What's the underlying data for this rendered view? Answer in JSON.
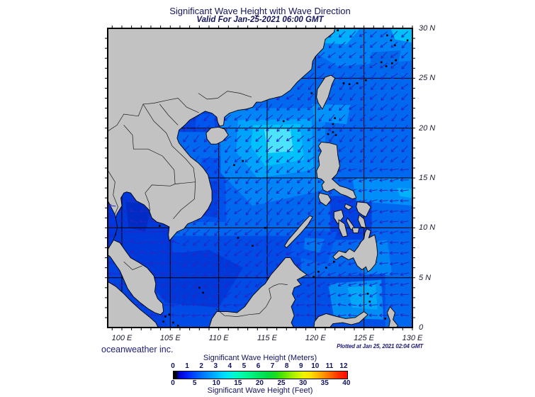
{
  "title": "Significant Wave Height with Wave Direction",
  "subtitle": "Valid For Jan-25-2021 06:00 GMT",
  "credit": "oceanweather inc.",
  "plotted": "Plotted at Jan 25, 2021 02:04 GMT",
  "axes": {
    "lon_labels": [
      "100 E",
      "105 E",
      "110 E",
      "115 E",
      "120 E",
      "125 E",
      "130 E"
    ],
    "lon_values": [
      100,
      105,
      110,
      115,
      120,
      125,
      130
    ],
    "lat_labels": [
      "30 N",
      "25 N",
      "20 N",
      "15 N",
      "10 N",
      "5 N",
      "0"
    ],
    "lat_values": [
      30,
      25,
      20,
      15,
      10,
      5,
      0
    ]
  },
  "legend": {
    "meters_title": "Significant Wave Height (Meters)",
    "feet_title": "Significant Wave Height (Feet)",
    "meters_ticks": [
      "0",
      "1",
      "2",
      "3",
      "4",
      "5",
      "6",
      "7",
      "8",
      "9",
      "10",
      "11",
      "12"
    ],
    "meters_values": [
      0,
      1,
      2,
      3,
      4,
      5,
      6,
      7,
      8,
      9,
      10,
      11,
      12
    ],
    "feet_ticks": [
      "0",
      "5",
      "10",
      "15",
      "20",
      "25",
      "30",
      "35",
      "40"
    ],
    "feet_values": [
      0,
      5,
      10,
      15,
      20,
      25,
      30,
      35,
      40
    ]
  },
  "colors": {
    "land": "#c2c2c2",
    "coast": "#000000",
    "ocean_base": "#0067ef",
    "arrow": "#2626c4",
    "grid": "#000000",
    "text": "#14145e",
    "colorbar_gradient": [
      [
        "0%",
        "#000000"
      ],
      [
        "1.5%",
        "#000000"
      ],
      [
        "3%",
        "#0000c8"
      ],
      [
        "8%",
        "#0022ff"
      ],
      [
        "13%",
        "#0055ff"
      ],
      [
        "18%",
        "#0080ff"
      ],
      [
        "23%",
        "#00a8ff"
      ],
      [
        "27%",
        "#00ccff"
      ],
      [
        "31%",
        "#00e6f2"
      ],
      [
        "35%",
        "#00f6d0"
      ],
      [
        "39%",
        "#00fcaa"
      ],
      [
        "44%",
        "#00f288"
      ],
      [
        "49%",
        "#00e562"
      ],
      [
        "54%",
        "#00dc46"
      ],
      [
        "59%",
        "#1edc1e"
      ],
      [
        "63%",
        "#55e400"
      ],
      [
        "67%",
        "#8eec00"
      ],
      [
        "71%",
        "#c2f300"
      ],
      [
        "75%",
        "#eef400"
      ],
      [
        "79%",
        "#ffdf00"
      ],
      [
        "83%",
        "#ffb600"
      ],
      [
        "87%",
        "#ff8e00"
      ],
      [
        "91%",
        "#ff5f00"
      ],
      [
        "95%",
        "#ff3000"
      ],
      [
        "100%",
        "#ff0a00"
      ]
    ]
  },
  "chart_data": {
    "type": "heatmap",
    "title": "Significant Wave Height with Wave Direction",
    "valid_time": "Jan-25-2021 06:00 GMT",
    "region": {
      "lon_range_deg_e": [
        100,
        130
      ],
      "lat_range_deg_n": [
        0,
        30
      ]
    },
    "x_ticks_deg_e": [
      100,
      105,
      110,
      115,
      120,
      125,
      130
    ],
    "y_ticks_deg_n": [
      0,
      5,
      10,
      15,
      20,
      25,
      30
    ],
    "colorbar_meters": [
      0,
      1,
      2,
      3,
      4,
      5,
      6,
      7,
      8,
      9,
      10,
      11,
      12
    ],
    "colorbar_feet": [
      0,
      5,
      10,
      15,
      20,
      25,
      30,
      35,
      40
    ],
    "field_summary": [
      {
        "area": "central South China Sea (114-118E, 17-20N)",
        "sig_wave_height_m": "2.5-3.5 (maximum, bright cyan)"
      },
      {
        "area": "most of open South China Sea and East China Sea",
        "sig_wave_height_m": "1.5-2.5"
      },
      {
        "area": "Gulf of Thailand, Gulf of Tonkin, coastal waters",
        "sig_wave_height_m": "0.5-1.5"
      },
      {
        "area": "Pacific east of the Philippines",
        "sig_wave_height_m": "1.5-2.5"
      }
    ],
    "wave_direction": "arrows point predominantly toward the southwest (northeast monsoon)"
  }
}
